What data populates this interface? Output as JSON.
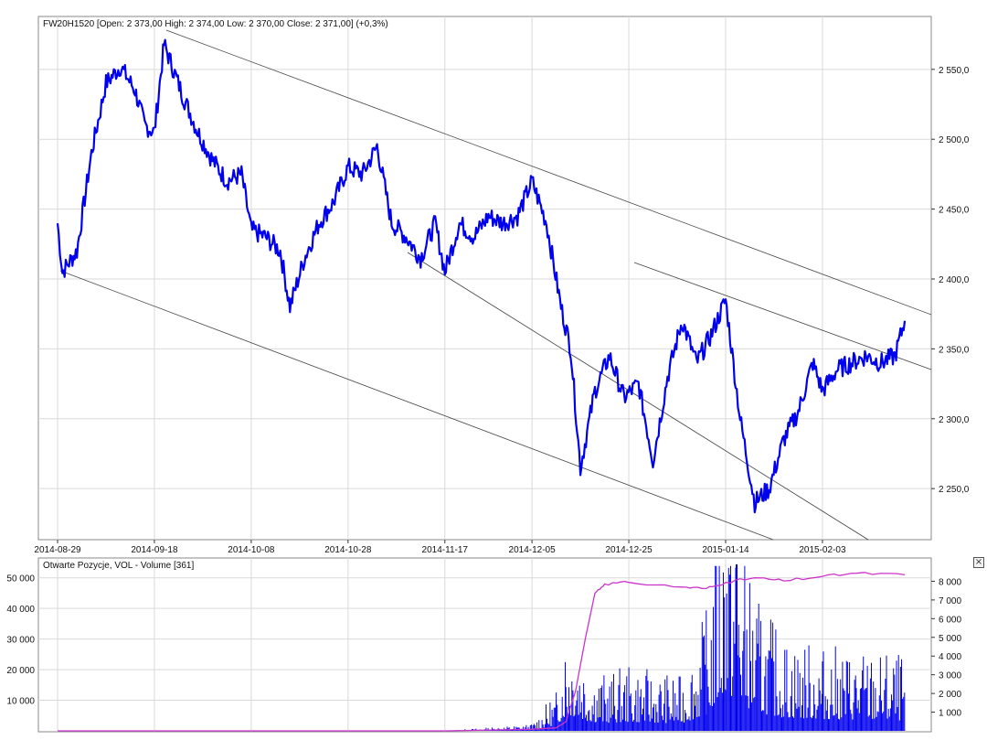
{
  "main_chart": {
    "title": "FW20H1520 [Open: 2 373,00  High: 2 374,00  Low: 2 370,00  Close: 2 371,00] (+0,3%)",
    "y_ticks": [
      "2 550,0",
      "2 500,0",
      "2 450,0",
      "2 400,0",
      "2 350,0",
      "2 300,0",
      "2 250,0"
    ],
    "x_ticks": [
      "2014-08-29",
      "2014-09-18",
      "2014-10-08",
      "2014-10-28",
      "2014-11-17",
      "2014-12-05",
      "2014-12-25",
      "2015-01-14",
      "2015-02-03"
    ],
    "line_color": "#0000ee"
  },
  "volume_chart": {
    "title": "Otwarte Pozycje, VOL - Volume [361]",
    "left_ticks": [
      "50 000",
      "40 000",
      "30 000",
      "20 000",
      "10 000"
    ],
    "right_ticks": [
      "8 000",
      "7 000",
      "6 000",
      "5 000",
      "4 000",
      "3 000",
      "2 000",
      "1 000"
    ],
    "oi_color": "#cc33cc",
    "volume_color": "#0000ee",
    "close_icon": "close-icon"
  },
  "chart_data": [
    {
      "type": "line",
      "title": "FW20H1520 [Open: 2 373,00  High: 2 374,00  Low: 2 370,00  Close: 2 371,00] (+0,3%)",
      "xlabel": "",
      "ylabel": "",
      "ylim": [
        2220,
        2580
      ],
      "x": [
        "2014-08-29",
        "2014-08-30",
        "2014-09-02",
        "2014-09-05",
        "2014-09-08",
        "2014-09-11",
        "2014-09-14",
        "2014-09-16",
        "2014-09-18",
        "2014-09-20",
        "2014-09-24",
        "2014-09-27",
        "2014-09-30",
        "2014-10-03",
        "2014-10-06",
        "2014-10-08",
        "2014-10-11",
        "2014-10-14",
        "2014-10-16",
        "2014-10-19",
        "2014-10-22",
        "2014-10-25",
        "2014-10-28",
        "2014-10-31",
        "2014-11-03",
        "2014-11-06",
        "2014-11-09",
        "2014-11-12",
        "2014-11-15",
        "2014-11-17",
        "2014-11-20",
        "2014-11-23",
        "2014-11-26",
        "2014-11-29",
        "2014-12-02",
        "2014-12-05",
        "2014-12-08",
        "2014-12-11",
        "2014-12-13",
        "2014-12-15",
        "2014-12-18",
        "2014-12-21",
        "2014-12-24",
        "2014-12-27",
        "2014-12-30",
        "2015-01-02",
        "2015-01-05",
        "2015-01-08",
        "2015-01-11",
        "2015-01-14",
        "2015-01-17",
        "2015-01-20",
        "2015-01-23",
        "2015-01-26",
        "2015-01-29",
        "2015-02-01",
        "2015-02-03",
        "2015-02-06",
        "2015-02-09",
        "2015-02-12",
        "2015-02-15",
        "2015-02-18",
        "2015-02-20"
      ],
      "series": [
        {
          "values": [
            2440,
            2405,
            2420,
            2490,
            2540,
            2552,
            2535,
            2510,
            2505,
            2568,
            2530,
            2505,
            2485,
            2470,
            2475,
            2435,
            2430,
            2420,
            2380,
            2415,
            2440,
            2455,
            2480,
            2475,
            2495,
            2440,
            2430,
            2415,
            2440,
            2405,
            2440,
            2430,
            2445,
            2440,
            2445,
            2470,
            2440,
            2380,
            2350,
            2265,
            2320,
            2345,
            2315,
            2325,
            2270,
            2330,
            2370,
            2340,
            2360,
            2385,
            2300,
            2240,
            2250,
            2285,
            2305,
            2340,
            2320,
            2335,
            2340,
            2345,
            2340,
            2345,
            2370
          ]
        }
      ]
    },
    {
      "type": "area",
      "title": "Otwarte Pozycje, VOL - Volume [361]",
      "xlabel": "",
      "ylabel": "",
      "x": [
        "2014-08-29",
        "2014-09-18",
        "2014-10-08",
        "2014-10-28",
        "2014-11-17",
        "2014-12-05",
        "2014-12-10",
        "2014-12-12",
        "2014-12-14",
        "2014-12-16",
        "2014-12-18",
        "2014-12-20",
        "2014-12-25",
        "2015-01-05",
        "2015-01-10",
        "2015-01-14",
        "2015-01-20",
        "2015-01-26",
        "2015-02-03",
        "2015-02-10",
        "2015-02-20"
      ],
      "series": [
        {
          "name": "Otwarte Pozycje",
          "values": [
            0,
            0,
            0,
            0,
            0,
            500,
            1000,
            3000,
            13000,
            30000,
            45000,
            48000,
            48500,
            47000,
            46500,
            48500,
            50000,
            49000,
            50500,
            51500,
            51000
          ]
        },
        {
          "name": "VOL - Volume",
          "values": [
            0,
            0,
            0,
            0,
            0,
            200,
            1200,
            3200,
            3000,
            2200,
            1800,
            1700,
            1900,
            1600,
            3500,
            8000,
            4000,
            2800,
            2500,
            2400,
            2200
          ]
        }
      ],
      "left_ylim": [
        0,
        55000
      ],
      "right_ylim": [
        0,
        9000
      ]
    }
  ]
}
